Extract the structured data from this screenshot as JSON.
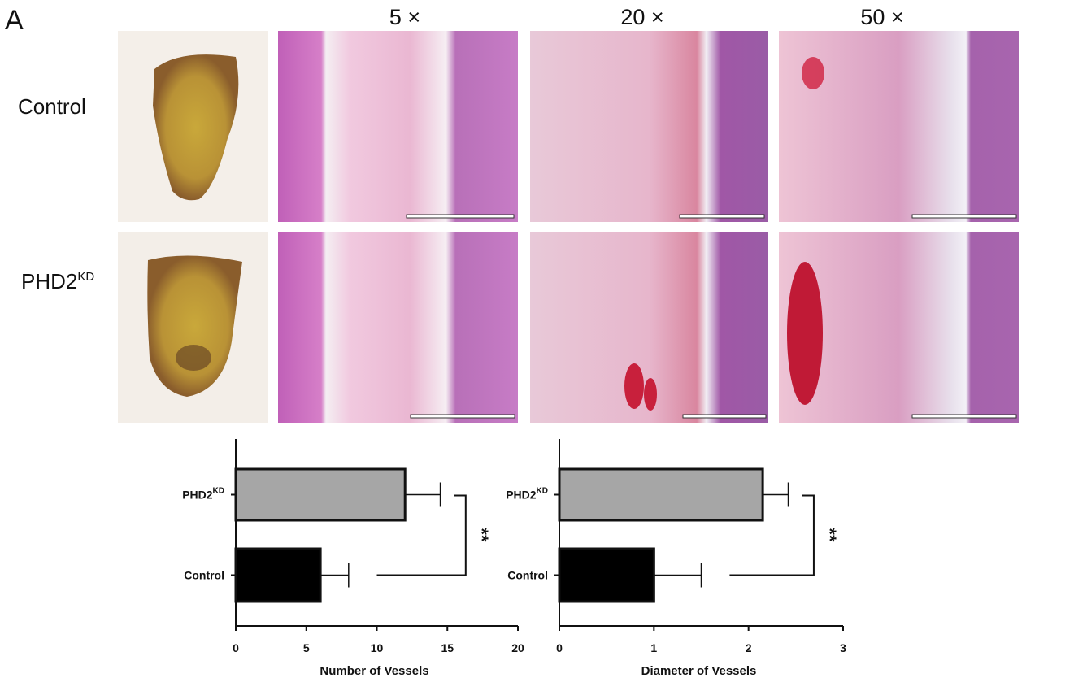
{
  "panel_label": "A",
  "column_headers": [
    "5 ×",
    "20 ×",
    "50 ×"
  ],
  "row_labels": [
    [
      "Control"
    ],
    [
      "PHD2",
      "KD"
    ]
  ],
  "chart_data": [
    {
      "type": "bar",
      "orientation": "horizontal",
      "categories": [
        [
          "PHD2",
          "KD"
        ],
        [
          "Control"
        ]
      ],
      "values": [
        12,
        6
      ],
      "errors": [
        2.5,
        2
      ],
      "colors": [
        "#a6a6a6",
        "#000000"
      ],
      "xlim": [
        0,
        20
      ],
      "xticks": [
        0,
        5,
        10,
        15,
        20
      ],
      "xlabel": "Number of Vessels",
      "significance": "**"
    },
    {
      "type": "bar",
      "orientation": "horizontal",
      "categories": [
        [
          "PHD2",
          "KD"
        ],
        [
          "Control"
        ]
      ],
      "values": [
        2.15,
        1.0
      ],
      "errors": [
        0.27,
        0.5
      ],
      "colors": [
        "#a6a6a6",
        "#000000"
      ],
      "xlim": [
        0,
        3
      ],
      "xticks": [
        0,
        1,
        2,
        3
      ],
      "xlabel": "Diameter of Vessels",
      "significance": "**"
    }
  ]
}
